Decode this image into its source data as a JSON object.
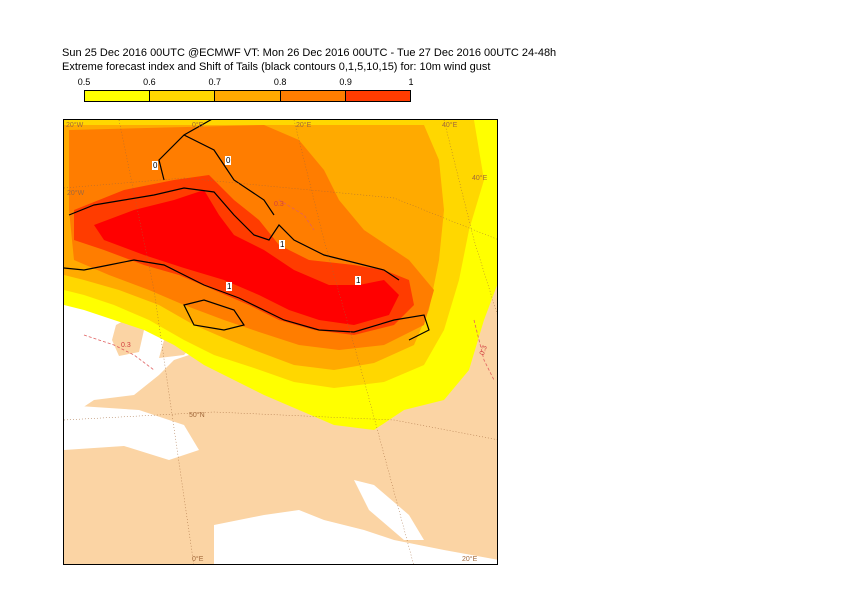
{
  "title": {
    "line1": "Sun 25 Dec 2016 00UTC @ECMWF VT: Mon 26 Dec 2016 00UTC - Tue 27 Dec 2016 00UTC  24-48h",
    "line2": "Extreme forecast index and Shift of Tails (black contours 0,1,5,10,15) for: 10m wind gust"
  },
  "colorbar": {
    "ticks": [
      "0.5",
      "0.6",
      "0.7",
      "0.8",
      "0.9",
      "1"
    ],
    "colors": [
      "#ffff00",
      "#ffd700",
      "#ffaa00",
      "#ff7d00",
      "#ff3c00",
      "#ff0000"
    ]
  },
  "map": {
    "colors": {
      "land": "#fbd4a4",
      "sea": "#ffffff",
      "efi_05": "#ffff00",
      "efi_06": "#ffd700",
      "efi_07": "#ffaa00",
      "efi_08": "#ff7d00",
      "efi_09": "#ff3c00",
      "efi_10": "#ff0000",
      "contour": "#000000",
      "efi_line": "#e06060",
      "graticule": "#a2683a"
    },
    "grid_labels": {
      "top": [
        "20°W",
        "0°E",
        "20°E",
        "40°E"
      ],
      "left_20w": "20°W",
      "right_40e": "40°E",
      "lat_50n": "50°N",
      "bottom": [
        "0°E",
        "20°E"
      ]
    },
    "contour_labels": [
      "0",
      "0",
      "1",
      "1",
      "1"
    ],
    "efi_labels": [
      "0.3",
      "0.3",
      "0.3"
    ]
  }
}
